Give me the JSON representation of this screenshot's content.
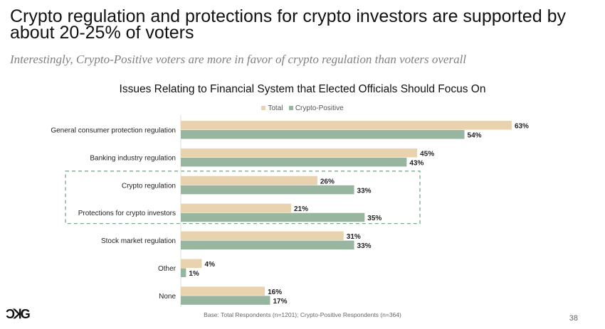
{
  "slide": {
    "title": "Crypto regulation and protections for crypto investors are supported by about 20-25% of voters",
    "subtitle": "Interestingly, Crypto-Positive voters are more in favor of crypto regulation than voters overall",
    "footnote": "Base: Total Respondents (n=1201); Crypto-Positive Respondents (n=364)",
    "page_number": "38",
    "logo": "DCG"
  },
  "chart_data": {
    "type": "bar",
    "orientation": "horizontal",
    "title": "Issues Relating to Financial System that Elected Officials Should Focus On",
    "categories": [
      "General consumer protection regulation",
      "Banking industry regulation",
      "Crypto regulation",
      "Protections for crypto investors",
      "Stock market regulation",
      "Other",
      "None"
    ],
    "series": [
      {
        "name": "Total",
        "color": "#e9d3ae",
        "values": [
          63,
          45,
          26,
          21,
          31,
          4,
          16
        ]
      },
      {
        "name": "Crypto-Positive",
        "color": "#97b59f",
        "values": [
          54,
          43,
          33,
          35,
          33,
          1,
          17
        ]
      }
    ],
    "value_suffix": "%",
    "legend": "top",
    "highlighted_categories": [
      "Crypto regulation",
      "Protections for crypto investors"
    ],
    "highlight_color": "#7aa98a"
  }
}
